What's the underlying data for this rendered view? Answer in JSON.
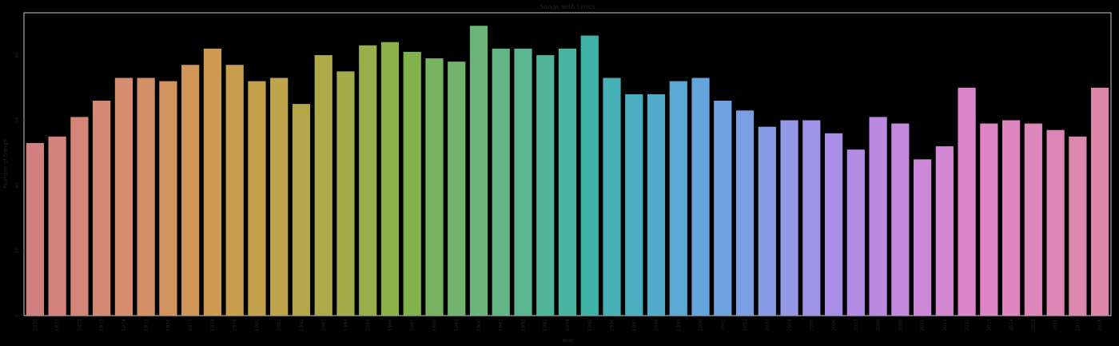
{
  "chart_data": {
    "type": "bar",
    "title": "Songs with Lyrics",
    "xlabel": "Year",
    "ylabel": "Number of Songs",
    "categories": [
      "1970",
      "1971",
      "1972",
      "1973",
      "1974",
      "1975",
      "1976",
      "1977",
      "1978",
      "1979",
      "1980",
      "1981",
      "1982",
      "1983",
      "1984",
      "1985",
      "1986",
      "1987",
      "1988",
      "1989",
      "1990",
      "1991",
      "1992",
      "1993",
      "1994",
      "1995",
      "1996",
      "1997",
      "1998",
      "1999",
      "2000",
      "2001",
      "2002",
      "2003",
      "2004",
      "2005",
      "2006",
      "2007",
      "2008",
      "2009",
      "2010",
      "2011",
      "2012",
      "2013",
      "2014",
      "2015",
      "2016",
      "2017",
      "2018"
    ],
    "values": [
      53,
      55,
      61,
      66,
      73,
      73,
      72,
      77,
      82,
      77,
      72,
      73,
      65,
      80,
      75,
      83,
      84,
      81,
      79,
      78,
      89,
      82,
      82,
      80,
      82,
      86,
      73,
      68,
      68,
      72,
      73,
      66,
      63,
      58,
      60,
      60,
      56,
      51,
      61,
      59,
      48,
      52,
      70,
      59,
      60,
      59,
      57,
      55,
      70
    ],
    "ylim": [
      0,
      93
    ],
    "yticks": [
      0,
      20,
      40,
      60,
      80
    ],
    "grid": false,
    "colors": [
      "#d1807f",
      "#d3837b",
      "#d38677",
      "#d48972",
      "#d48d6d",
      "#d39066",
      "#d2935f",
      "#d09658",
      "#cc9a50",
      "#c89d4c",
      "#c3a14a",
      "#bda44b",
      "#b6a64b",
      "#aea94b",
      "#a4ac4a",
      "#99ae4b",
      "#8eb04b",
      "#82b24c",
      "#79b35f",
      "#72b46d",
      "#6bb57a",
      "#63b585",
      "#59b68e",
      "#4fb596",
      "#46b49f",
      "#41b2a8",
      "#45b0b5",
      "#4aaec0",
      "#52abca",
      "#5aa8d3",
      "#63a5dc",
      "#6ea2e1",
      "#7a9ee4",
      "#879be5",
      "#9397e6",
      "#9e93e6",
      "#a88fe5",
      "#b28ce4",
      "#bb8ae0",
      "#c488dc",
      "#cc87d7",
      "#d386d1",
      "#d986cc",
      "#dc86c6",
      "#dd86c0",
      "#dd86ba",
      "#dd86b4",
      "#dd86ae",
      "#dd86a8"
    ]
  }
}
